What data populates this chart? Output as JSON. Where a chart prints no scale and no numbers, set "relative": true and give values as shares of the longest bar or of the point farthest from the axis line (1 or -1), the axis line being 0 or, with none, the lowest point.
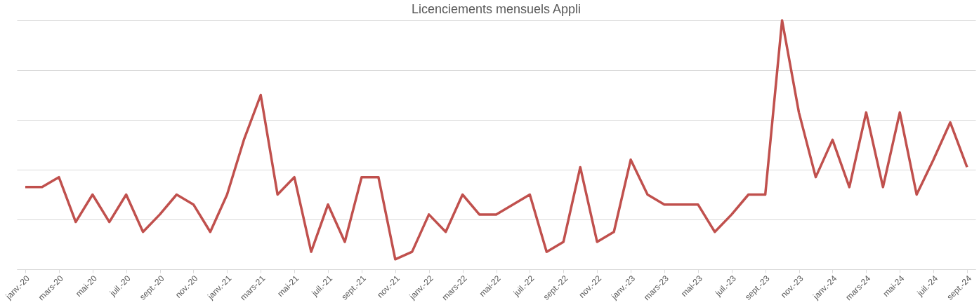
{
  "chart_data": {
    "type": "line",
    "title": "Licenciements mensuels  Appli",
    "relative": true,
    "grid": "y",
    "marker": "none",
    "line_style": "solid",
    "categories": [
      "janv.-20",
      null,
      "mars-20",
      null,
      "mai-20",
      null,
      "juil.-20",
      null,
      "sept.-20",
      null,
      "nov.-20",
      null,
      "janv.-21",
      null,
      "mars-21",
      null,
      "mai-21",
      null,
      "juil.-21",
      null,
      "sept.-21",
      null,
      "nov.-21",
      null,
      "janv.-22",
      null,
      "mars-22",
      null,
      "mai-22",
      null,
      "juil.-22",
      null,
      "sept.-22",
      null,
      "nov.-22",
      null,
      "janv.-23",
      null,
      "mars-23",
      null,
      "mai-23",
      null,
      "juil.-23",
      null,
      "sept.-23",
      null,
      "nov.-23",
      null,
      "janv.-24",
      null,
      "mars-24",
      null,
      "mai-24",
      null,
      "juil.-24",
      null,
      "sept.-24"
    ],
    "series": [
      {
        "color": "#c0504d",
        "values": [
          0.33,
          0.33,
          0.37,
          0.19,
          0.3,
          0.19,
          0.3,
          0.15,
          0.22,
          0.3,
          0.26,
          0.15,
          0.3,
          0.52,
          0.7,
          0.3,
          0.37,
          0.07,
          0.26,
          0.11,
          0.37,
          0.37,
          0.04,
          0.07,
          0.22,
          0.15,
          0.3,
          0.22,
          0.22,
          0.26,
          0.3,
          0.07,
          0.11,
          0.41,
          0.11,
          0.15,
          0.44,
          0.3,
          0.26,
          0.26,
          0.26,
          0.15,
          0.22,
          0.3,
          0.3,
          1,
          0.63,
          0.37,
          0.52,
          0.33,
          0.63,
          0.33,
          0.63,
          0.3,
          0.44,
          0.59,
          0.41
        ]
      }
    ]
  }
}
